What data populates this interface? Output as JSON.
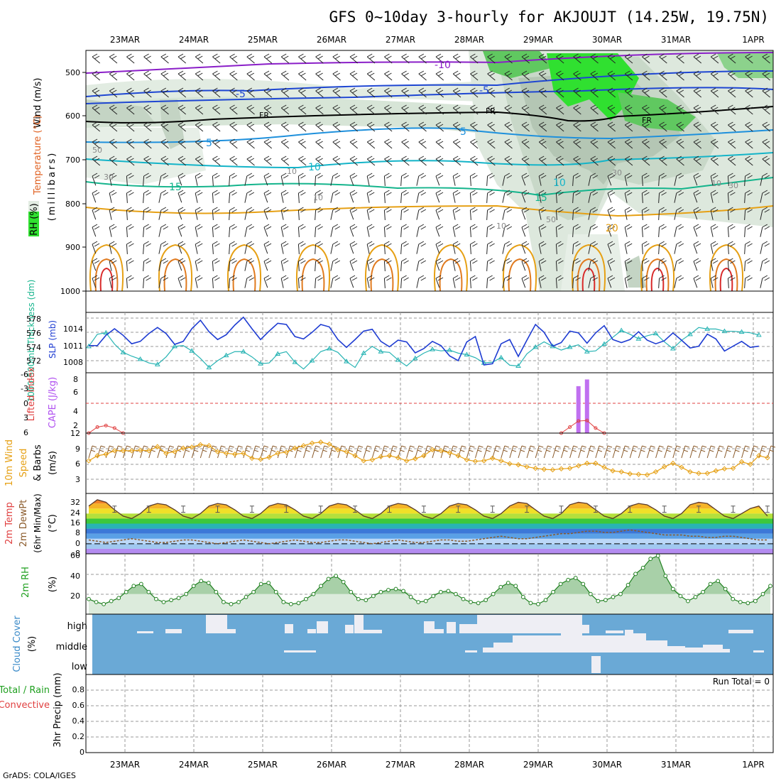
{
  "title": "GFS 0~10day 3-hourly for AKJOUJT (14.25W, 19.75N)",
  "footer": "GrADS: COLA/IGES",
  "run_total": "Run Total = 0",
  "chart_data": [
    {
      "id": "upper",
      "type": "contour",
      "ylabel_wind": "Wind (m/s)",
      "ylabel_temp": "Temperature (°C)",
      "ylabel_rh": "RH (%)",
      "ylabel_p": "(millibars)",
      "yticks": [
        "500",
        "600",
        "700",
        "800",
        "900",
        "1000"
      ],
      "days": [
        "23MAR",
        "24MAR",
        "25MAR",
        "26MAR",
        "27MAR",
        "28MAR",
        "29MAR",
        "30MAR",
        "31MAR",
        "1APR"
      ],
      "isotherm_labels": [
        {
          "text": "-10",
          "color": "#8a1ec8"
        },
        {
          "text": "-5",
          "color": "#1e46d2"
        },
        {
          "text": "-5",
          "color": "#1e46d2"
        },
        {
          "text": "FR",
          "color": "#000000"
        },
        {
          "text": "FR",
          "color": "#000000"
        },
        {
          "text": "FR",
          "color": "#000000"
        },
        {
          "text": "5",
          "color": "#1e90dc"
        },
        {
          "text": "5",
          "color": "#1e90dc"
        },
        {
          "text": "10",
          "color": "#14b4c8"
        },
        {
          "text": "10",
          "color": "#14b4c8"
        },
        {
          "text": "15",
          "color": "#14b48c"
        },
        {
          "text": "15",
          "color": "#14b48c"
        },
        {
          "text": "20",
          "color": "#e6a014"
        }
      ],
      "rh_labels": [
        "30",
        "50",
        "10",
        "10",
        "10",
        "10",
        "30",
        "50",
        "30"
      ]
    },
    {
      "id": "thickness_slp",
      "type": "line",
      "ylabel_left": "1000-500mb Thickness (dm)",
      "ylabel_right": "SLP (mb)",
      "thk_ticks": [
        "578",
        "576",
        "574",
        "572"
      ],
      "slp_ticks": [
        "1014",
        "1011",
        "1008"
      ],
      "series": [
        {
          "name": "Thickness",
          "color": "#28b4b4",
          "range": [
            571,
            579
          ],
          "values": [
            574.5,
            576.1,
            576.3,
            574.8,
            573.7,
            573.2,
            572.8,
            572.3,
            572.1,
            573.1,
            574.5,
            574.6,
            573.9,
            572.9,
            571.7,
            572.6,
            573.3,
            573.8,
            573.8,
            573.1,
            572.2,
            572.3,
            573.5,
            573.8,
            572.4,
            571.5,
            572.6,
            573.8,
            574.2,
            573.7,
            572.5,
            571.7,
            573.6,
            574.5,
            573.8,
            573.7,
            572.7,
            571.9,
            572.9,
            573.6,
            574.1,
            573.9,
            574.0,
            573.6,
            573.4,
            573.0,
            572.3,
            572.4,
            573.0,
            572.0,
            571.9,
            573.5,
            574.4,
            575.1,
            574.5,
            574.0,
            574.4,
            574.7,
            573.8,
            573.9,
            574.8,
            575.7,
            576.6,
            576.1,
            575.5,
            575.9,
            576.2,
            575.1,
            574.2,
            575.3,
            576.1,
            577.0,
            576.8,
            576.8,
            576.5,
            576.5,
            576.4,
            576.3,
            576.0
          ]
        },
        {
          "name": "SLP",
          "color": "#1e3cd2",
          "range": [
            1006,
            1016
          ],
          "values": [
            1010.5,
            1010.5,
            1012.2,
            1013.3,
            1012.2,
            1010.8,
            1011.2,
            1012.5,
            1013.5,
            1012.5,
            1010.7,
            1011.2,
            1013.3,
            1014.7,
            1012.8,
            1011.5,
            1012.3,
            1013.9,
            1015.2,
            1013.3,
            1011.5,
            1012.9,
            1014.2,
            1014.0,
            1012.0,
            1011.6,
            1012.7,
            1014.0,
            1013.6,
            1011.5,
            1010.2,
            1011.5,
            1012.9,
            1013.2,
            1011.2,
            1010.3,
            1011.4,
            1011.1,
            1009.3,
            1010.0,
            1011.2,
            1010.5,
            1008.8,
            1008.0,
            1011.1,
            1012.0,
            1007.3,
            1007.5,
            1010.8,
            1011.5,
            1008.7,
            1011.4,
            1014.0,
            1012.7,
            1010.4,
            1011.0,
            1012.9,
            1012.6,
            1010.9,
            1012.6,
            1013.8,
            1011.5,
            1011.0,
            1011.5,
            1012.8,
            1011.4,
            1010.8,
            1011.3,
            1012.6,
            1011.4,
            1010.1,
            1010.4,
            1012.4,
            1011.6,
            1009.6,
            1010.4,
            1011.2,
            1010.2,
            1010.4
          ]
        }
      ]
    },
    {
      "id": "cape_li",
      "type": "bar",
      "ylabel_left": "Lifted Index",
      "ylabel_right": "CAPE (J/kg)",
      "li_ticks": [
        "-6",
        "-3",
        "0",
        "3",
        "6"
      ],
      "cape_ticks": [
        "8",
        "6",
        "4",
        "2"
      ],
      "cape_bars": [
        {
          "step": 57,
          "value": 7
        },
        {
          "step": 58,
          "value": 8
        }
      ],
      "li_ylim": [
        6,
        -6
      ],
      "cape_ylim": [
        0,
        9
      ],
      "li_values": [
        {
          "step": 0,
          "value": 6
        },
        {
          "step": 1,
          "value": 4.8
        },
        {
          "step": 2,
          "value": 4.5
        },
        {
          "step": 3,
          "value": 5
        },
        {
          "step": 4,
          "value": 6
        },
        {
          "step": 55,
          "value": 6
        },
        {
          "step": 56,
          "value": 4.8
        },
        {
          "step": 57,
          "value": 3.6
        },
        {
          "step": 58,
          "value": 3.5
        },
        {
          "step": 59,
          "value": 5
        },
        {
          "step": 60,
          "value": 6
        }
      ]
    },
    {
      "id": "wind10m",
      "type": "line",
      "ylabel_1": "10m Wind",
      "ylabel_2": "Speed",
      "ylabel_3": "& Barbs",
      "ylabel_unit": "(m/s)",
      "ticks": [
        "12",
        "9",
        "6",
        "3"
      ],
      "ylim": [
        0,
        12
      ],
      "values": [
        6.5,
        7.5,
        7.8,
        8.5,
        8.5,
        8.5,
        8.6,
        8.5,
        9.3,
        8.0,
        8.3,
        9.0,
        9.2,
        9.7,
        9.5,
        8.3,
        8.0,
        7.8,
        8.0,
        7.0,
        6.8,
        7.2,
        8.0,
        8.2,
        9.0,
        9.5,
        10.0,
        10.2,
        9.8,
        8.7,
        8.3,
        7.5,
        6.5,
        6.7,
        7.3,
        7.5,
        7.1,
        6.5,
        6.9,
        7.5,
        8.7,
        8.5,
        8.1,
        7.5,
        6.7,
        6.4,
        6.5,
        7.0,
        6.5,
        5.9,
        5.7,
        5.3,
        5.0,
        4.8,
        4.7,
        4.9,
        5.0,
        5.5,
        6.0,
        6.0,
        5.2,
        4.5,
        4.3,
        3.9,
        3.8,
        3.7,
        4.3,
        5.3,
        6.0,
        5.2,
        4.3,
        4.0,
        4.0,
        4.5,
        4.9,
        5.0,
        6.3,
        5.8,
        7.5,
        7.1
      ]
    },
    {
      "id": "temps",
      "type": "area",
      "ylabel_1": "2m Temp",
      "ylabel_2": "2m DewPt",
      "ylabel_3": "(6hr Min/Max)",
      "ylabel_unit": "(°C)",
      "ticks": [
        "32",
        "24",
        "16",
        "8",
        "0",
        "-8"
      ],
      "ylim": [
        -8,
        40
      ],
      "temp_values": [
        30,
        35,
        33,
        27,
        22,
        20,
        24,
        30,
        32,
        31,
        27,
        22,
        20,
        24,
        30,
        32,
        31,
        27,
        22,
        20,
        24,
        30,
        32,
        31,
        27,
        22,
        20,
        24,
        30,
        32,
        31,
        27,
        22,
        20,
        24,
        30,
        32,
        31,
        27,
        22,
        20,
        24,
        30,
        32,
        31,
        27,
        22,
        20,
        24,
        30,
        33,
        32,
        27,
        22,
        20,
        24,
        31,
        33,
        32,
        27,
        22,
        20,
        24,
        30,
        32,
        31,
        27,
        22,
        20,
        24,
        31,
        33,
        32,
        27,
        22,
        20,
        24,
        28,
        30,
        22
      ],
      "dew_values": [
        3,
        2,
        1,
        2,
        3,
        4,
        3,
        2,
        1,
        1,
        2,
        3,
        3,
        2,
        1,
        0,
        1,
        2,
        3,
        2,
        1,
        0,
        1,
        2,
        3,
        2,
        1,
        1,
        2,
        3,
        3,
        2,
        1,
        0,
        1,
        2,
        3,
        2,
        1,
        1,
        2,
        3,
        3,
        2,
        2,
        3,
        4,
        5,
        6,
        5,
        4,
        4,
        5,
        6,
        7,
        8,
        8,
        9,
        10,
        10,
        9,
        9,
        10,
        11,
        10,
        9,
        8,
        7,
        7,
        7,
        6,
        6,
        5,
        5,
        6,
        6,
        5,
        4,
        3,
        3
      ]
    },
    {
      "id": "rh2m",
      "type": "area",
      "ylabel_1": "2m RH",
      "ylabel_unit": "(%)",
      "ticks": [
        "60",
        "40",
        "20"
      ],
      "ylim": [
        0,
        60
      ],
      "values": [
        15,
        12,
        10,
        13,
        16,
        22,
        28,
        30,
        22,
        15,
        12,
        14,
        16,
        20,
        28,
        33,
        31,
        22,
        12,
        10,
        12,
        17,
        22,
        30,
        31,
        22,
        12,
        10,
        11,
        15,
        20,
        28,
        35,
        38,
        32,
        22,
        15,
        14,
        18,
        22,
        24,
        25,
        23,
        17,
        12,
        13,
        18,
        22,
        23,
        20,
        15,
        12,
        11,
        14,
        20,
        27,
        31,
        28,
        17,
        11,
        10,
        14,
        22,
        30,
        34,
        36,
        30,
        20,
        13,
        14,
        17,
        20,
        29,
        40,
        46,
        55,
        58,
        38,
        25,
        18,
        13,
        17,
        22,
        30,
        33,
        25,
        15,
        12,
        11,
        13,
        20,
        28
      ]
    },
    {
      "id": "cloud",
      "type": "heatmap",
      "ylabel": "Cloud Cover",
      "ylabel_unit": "(%)",
      "levels": [
        "high",
        "middle",
        "low"
      ]
    },
    {
      "id": "precip",
      "type": "bar",
      "ylabel_left_1": "Total / Rain",
      "ylabel_left_2": "Convective",
      "ylabel": "3hr Precip (mm)",
      "ticks": [
        "0.8",
        "0.6",
        "0.4",
        "0.2",
        "0"
      ],
      "ylim": [
        0,
        1
      ],
      "values": []
    }
  ]
}
